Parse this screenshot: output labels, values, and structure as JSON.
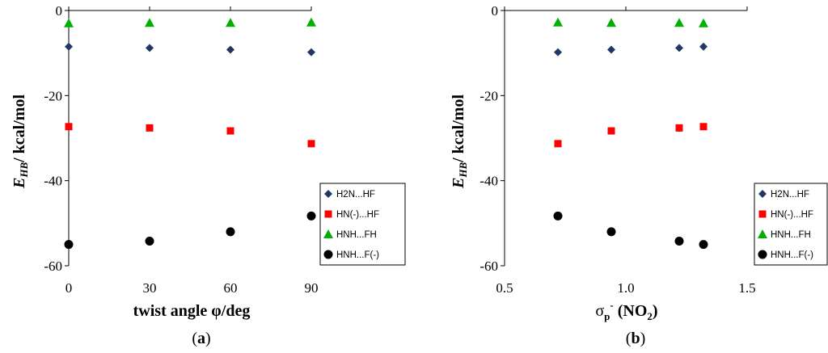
{
  "colors": {
    "H2N...HF": "#1f3864",
    "HN(-)...HF": "#ff0000",
    "HNH...FH": "#00b000",
    "HNH...F(-)": "#000000"
  },
  "chart_data": [
    {
      "type": "scatter",
      "panel_label": "a",
      "ylabel_main": "E",
      "ylabel_sub": "HB",
      "ylabel_rest": "/ kcal/mol",
      "xlabel": "twist angle φ/deg",
      "xlim": [
        0,
        90
      ],
      "ylim": [
        -60,
        0
      ],
      "xticks": [
        0,
        30,
        60,
        90
      ],
      "xtick_labels": [
        "0",
        "30",
        "60",
        "90"
      ],
      "yticks": [
        0,
        -20,
        -40,
        -60
      ],
      "ytick_labels": [
        "0",
        "-20",
        "-40",
        "-60"
      ],
      "legend_position": "bottom-right",
      "series": [
        {
          "name": "H2N...HF",
          "marker": "diamond",
          "x": [
            0,
            30,
            60,
            90
          ],
          "y": [
            -8.5,
            -8.8,
            -9.2,
            -9.8
          ]
        },
        {
          "name": "HN(-)...HF",
          "marker": "square",
          "x": [
            0,
            30,
            60,
            90
          ],
          "y": [
            -27.3,
            -27.6,
            -28.3,
            -31.3
          ]
        },
        {
          "name": "HNH...FH",
          "marker": "triangle",
          "x": [
            0,
            30,
            60,
            90
          ],
          "y": [
            -3.0,
            -2.9,
            -2.9,
            -2.8
          ]
        },
        {
          "name": "HNH...F(-)",
          "marker": "circle",
          "x": [
            0,
            30,
            60,
            90
          ],
          "y": [
            -55.0,
            -54.2,
            -52.0,
            -48.3
          ]
        }
      ]
    },
    {
      "type": "scatter",
      "panel_label": "b",
      "ylabel_main": "E",
      "ylabel_sub": "HB",
      "ylabel_rest": "/ kcal/mol",
      "xlabel_main": "σ",
      "xlabel_sub": "p",
      "xlabel_sup": "-",
      "xlabel_rest": " (NO",
      "xlabel_sub2": "2",
      "xlabel_end": ")",
      "xlim": [
        0.5,
        1.5
      ],
      "ylim": [
        -60,
        0
      ],
      "xticks": [
        0.5,
        1.0,
        1.5
      ],
      "xtick_labels": [
        "0.5",
        "1.0",
        "1.5"
      ],
      "yticks": [
        0,
        -20,
        -40,
        -60
      ],
      "ytick_labels": [
        "0",
        "-20",
        "-40",
        "-60"
      ],
      "legend_position": "bottom-right",
      "series": [
        {
          "name": "H2N...HF",
          "marker": "diamond",
          "x": [
            0.72,
            0.94,
            1.22,
            1.32
          ],
          "y": [
            -9.8,
            -9.2,
            -8.8,
            -8.5
          ]
        },
        {
          "name": "HN(-)...HF",
          "marker": "square",
          "x": [
            0.72,
            0.94,
            1.22,
            1.32
          ],
          "y": [
            -31.3,
            -28.3,
            -27.6,
            -27.3
          ]
        },
        {
          "name": "HNH...FH",
          "marker": "triangle",
          "x": [
            0.72,
            0.94,
            1.22,
            1.32
          ],
          "y": [
            -2.8,
            -2.9,
            -2.9,
            -3.0
          ]
        },
        {
          "name": "HNH...F(-)",
          "marker": "circle",
          "x": [
            0.72,
            0.94,
            1.22,
            1.32
          ],
          "y": [
            -48.3,
            -52.0,
            -54.2,
            -55.0
          ]
        }
      ]
    }
  ]
}
